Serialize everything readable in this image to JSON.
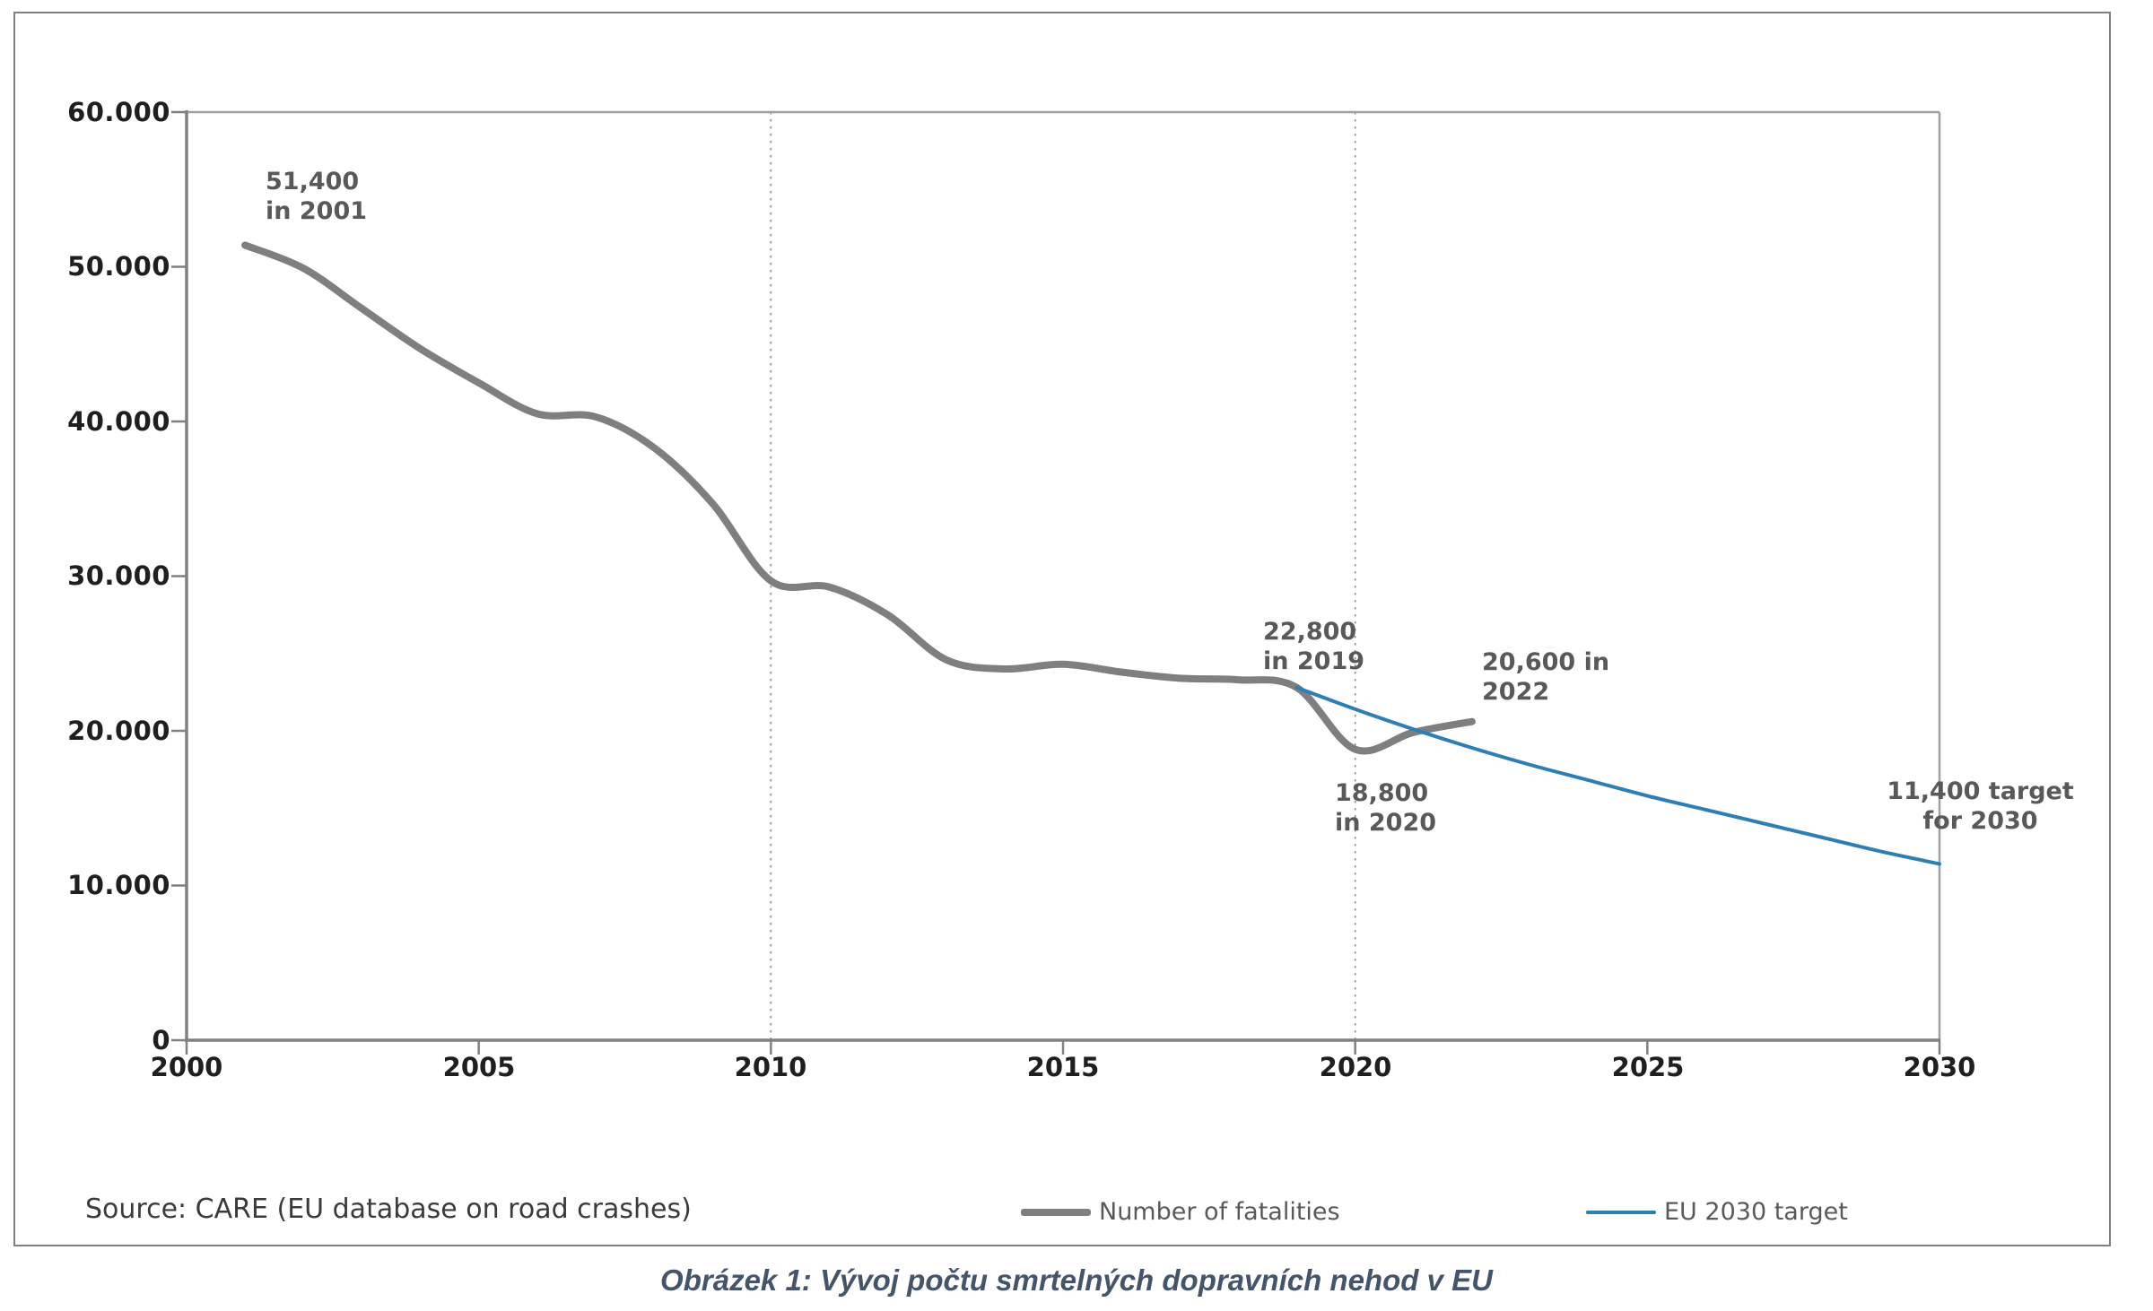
{
  "figure": {
    "caption": "Obrázek 1: Vývoj počtu smrtelných dopravních nehod v EU",
    "source": "Source: CARE (EU database on road crashes)",
    "border_color": "#7f7f7f",
    "background": "#ffffff"
  },
  "colors": {
    "fatalities_line": "#7f7f7f",
    "target_line": "#2d7eb5",
    "axis": "#808080",
    "plot_border": "#a0a0a0",
    "gridline": "#8c8c8c",
    "tick_label": "#1f1f1f",
    "annotation_text": "#595959",
    "caption_text": "#44546a"
  },
  "legend": {
    "items": [
      {
        "label": "Number of fatalities",
        "color": "#7f7f7f",
        "thickness": 8
      },
      {
        "label": "EU 2030 target",
        "color": "#2d7eb5",
        "thickness": 4
      }
    ]
  },
  "chart_data": {
    "type": "line",
    "title": "",
    "xlabel": "",
    "ylabel": "",
    "xlim": [
      2000,
      2030
    ],
    "ylim": [
      0,
      60000
    ],
    "x_ticks": [
      2000,
      2005,
      2010,
      2015,
      2020,
      2025,
      2030
    ],
    "x_tick_labels": [
      "2000",
      "2005",
      "2010",
      "2015",
      "2020",
      "2025",
      "2030"
    ],
    "y_ticks": [
      0,
      10000,
      20000,
      30000,
      40000,
      50000,
      60000
    ],
    "y_tick_labels": [
      "0",
      "10.000",
      "20.000",
      "30.000",
      "40.000",
      "50.000",
      "60.000"
    ],
    "gridlines_x": [
      2010,
      2020
    ],
    "grid": "vertical-dotted-at-2010-and-2020",
    "legend_position": "bottom",
    "series": [
      {
        "name": "Number of fatalities",
        "color": "#7f7f7f",
        "width": 8,
        "x": [
          2001,
          2002,
          2003,
          2004,
          2005,
          2006,
          2007,
          2008,
          2009,
          2010,
          2011,
          2012,
          2013,
          2014,
          2015,
          2016,
          2017,
          2018,
          2019,
          2020,
          2021,
          2022
        ],
        "y": [
          51400,
          49900,
          47300,
          44700,
          42500,
          40500,
          40300,
          38300,
          34700,
          29700,
          29300,
          27500,
          24600,
          24000,
          24300,
          23800,
          23400,
          23300,
          22800,
          18800,
          19900,
          20600
        ]
      },
      {
        "name": "EU 2030 target",
        "color": "#2d7eb5",
        "width": 4,
        "x": [
          2019,
          2020,
          2021,
          2022,
          2023,
          2024,
          2025,
          2026,
          2027,
          2028,
          2029,
          2030
        ],
        "y": [
          22800,
          21400,
          20100,
          18900,
          17800,
          16800,
          15800,
          14900,
          14000,
          13100,
          12200,
          11400
        ]
      }
    ],
    "annotations": [
      {
        "lines": [
          "51,400",
          "in 2001"
        ],
        "align": "left"
      },
      {
        "lines": [
          "22,800",
          "in 2019"
        ],
        "align": "left"
      },
      {
        "lines": [
          "20,600 in",
          "2022"
        ],
        "align": "left"
      },
      {
        "lines": [
          "18,800",
          "in 2020"
        ],
        "align": "left"
      },
      {
        "lines": [
          "11,400 target",
          "for 2030"
        ],
        "align": "center"
      }
    ],
    "key_points": [
      {
        "series": "Number of fatalities",
        "year": 2001,
        "value": 51400
      },
      {
        "series": "Number of fatalities",
        "year": 2019,
        "value": 22800
      },
      {
        "series": "Number of fatalities",
        "year": 2020,
        "value": 18800
      },
      {
        "series": "Number of fatalities",
        "year": 2022,
        "value": 20600
      },
      {
        "series": "EU 2030 target",
        "year": 2030,
        "value": 11400
      }
    ]
  }
}
